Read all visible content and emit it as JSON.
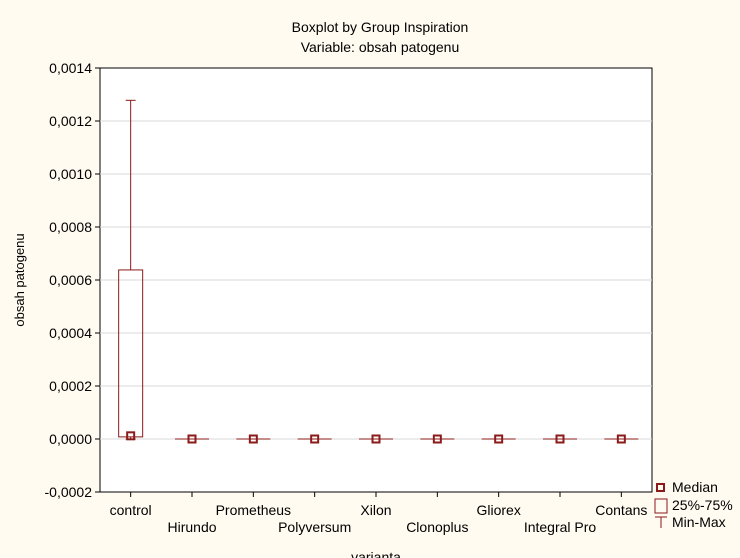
{
  "chart_data": {
    "type": "boxplot",
    "title": "Boxplot by Group Inspiration",
    "subtitle": "Variable: obsah patogenu",
    "xlabel": "varianta",
    "ylabel": "obsah patogenu",
    "ylim": [
      -0.0002,
      0.0014
    ],
    "yticks": [
      "-0,0002",
      "0,0000",
      "0,0002",
      "0,0004",
      "0,0006",
      "0,0008",
      "0,0010",
      "0,0012",
      "0,0014"
    ],
    "grid": true,
    "legend_position": "bottom-right",
    "categories": [
      "control",
      "Hirundo",
      "Prometheus",
      "Polyversum",
      "Xilon",
      "Clonoplus",
      "Gliorex",
      "Integral Pro",
      "Contans"
    ],
    "groups": [
      {
        "name": "control",
        "median": 1.2e-05,
        "q1": 8e-06,
        "q3": 0.000638,
        "min": 0.0,
        "max": 0.001278
      },
      {
        "name": "Hirundo",
        "median": 0.0,
        "q1": 0.0,
        "q3": 0.0,
        "min": 0.0,
        "max": 0.0
      },
      {
        "name": "Prometheus",
        "median": 0.0,
        "q1": 0.0,
        "q3": 0.0,
        "min": 0.0,
        "max": 0.0
      },
      {
        "name": "Polyversum",
        "median": 0.0,
        "q1": 0.0,
        "q3": 0.0,
        "min": 0.0,
        "max": 0.0
      },
      {
        "name": "Xilon",
        "median": 0.0,
        "q1": 0.0,
        "q3": 0.0,
        "min": 0.0,
        "max": 0.0
      },
      {
        "name": "Clonoplus",
        "median": 0.0,
        "q1": 0.0,
        "q3": 0.0,
        "min": 0.0,
        "max": 0.0
      },
      {
        "name": "Gliorex",
        "median": 0.0,
        "q1": 0.0,
        "q3": 0.0,
        "min": 0.0,
        "max": 0.0
      },
      {
        "name": "Integral Pro",
        "median": 0.0,
        "q1": 0.0,
        "q3": 0.0,
        "min": 0.0,
        "max": 0.0
      },
      {
        "name": "Contans",
        "median": 0.0,
        "q1": 0.0,
        "q3": 0.0,
        "min": 0.0,
        "max": 0.0
      }
    ],
    "legend": [
      "Median",
      "25%-75%",
      "Min-Max"
    ],
    "colors": {
      "series": "#8b1a1a",
      "grid": "#d9d9d9",
      "background": "#fffbf0",
      "plot_area": "#ffffff"
    }
  }
}
